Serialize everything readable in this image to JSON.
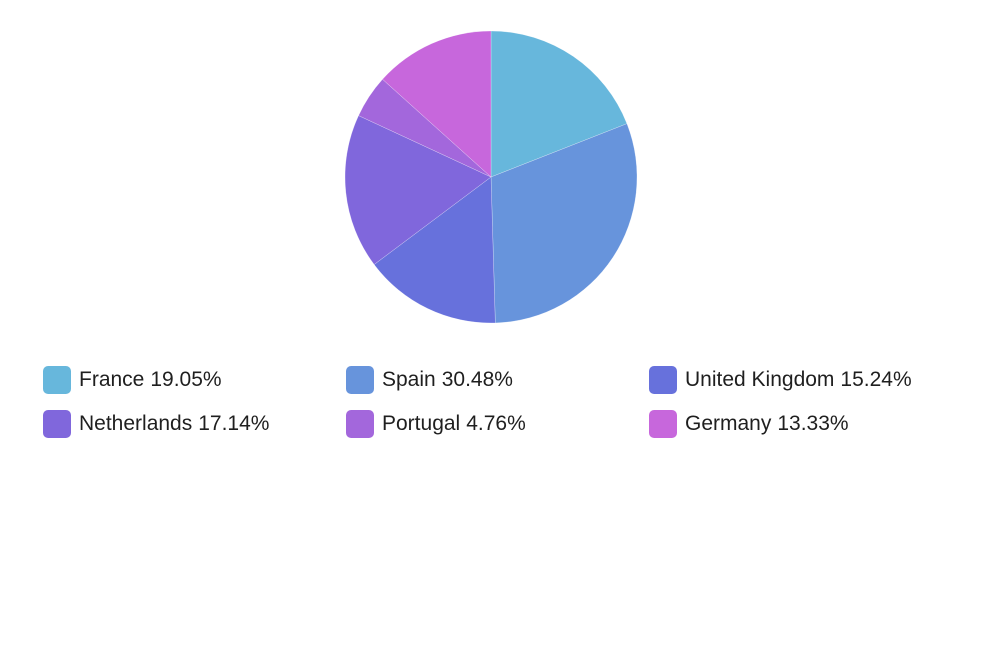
{
  "chart_data": {
    "type": "pie",
    "title": "",
    "categories": [
      "France",
      "Spain",
      "United Kingdom",
      "Netherlands",
      "Portugal",
      "Germany"
    ],
    "values": [
      19.05,
      30.48,
      15.24,
      17.14,
      4.76,
      13.33
    ],
    "value_labels": [
      "19.05%",
      "30.48%",
      "15.24%",
      "17.14%",
      "4.76%",
      "13.33%"
    ],
    "colors": [
      "#67b7dc",
      "#6794dc",
      "#6771dc",
      "#8067dc",
      "#a367dc",
      "#c767dc"
    ],
    "start_angle": "top",
    "direction": "clockwise",
    "legend_position": "bottom"
  }
}
